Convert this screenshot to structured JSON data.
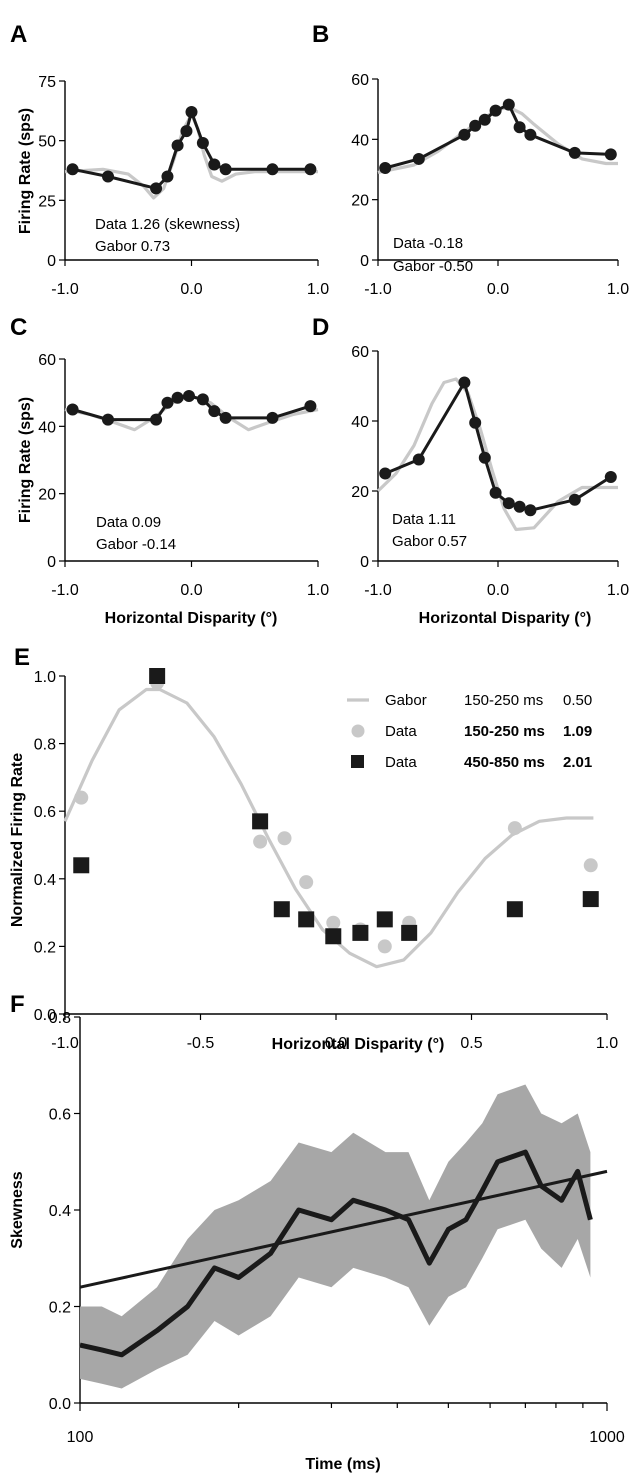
{
  "colors": {
    "data": "#1a1a1a",
    "gabor": "#c8c8c8",
    "band": "#a7a7a7",
    "axis": "#000000"
  },
  "chart_data": [
    {
      "panel": "A",
      "type": "line",
      "ylabel": "Firing Rate (sps)",
      "xlabel": "",
      "xlim": [
        -1.0,
        1.0
      ],
      "ylim": [
        0,
        75
      ],
      "xticks": [
        "-1.0",
        "0.0",
        "1.0"
      ],
      "yticks": [
        "0",
        "25",
        "50",
        "75"
      ],
      "annotations": [
        "Data    1.26 (skewness)",
        "Gabor  0.73"
      ],
      "series": [
        {
          "role": "data",
          "x": [
            -0.94,
            -0.66,
            -0.28,
            -0.19,
            -0.11,
            -0.04,
            0.0,
            0.09,
            0.18,
            0.27,
            0.64,
            0.94
          ],
          "y": [
            38,
            35,
            30,
            35,
            48,
            54,
            62,
            49,
            40,
            38,
            38,
            38
          ]
        },
        {
          "role": "gabor",
          "x": [
            -1.0,
            -0.7,
            -0.5,
            -0.38,
            -0.3,
            -0.22,
            -0.14,
            -0.07,
            0.0,
            0.05,
            0.1,
            0.16,
            0.24,
            0.35,
            0.5,
            1.0
          ],
          "y": [
            37,
            38,
            36,
            31,
            26,
            30,
            42,
            54,
            61,
            55,
            44,
            35,
            33,
            36,
            37,
            37
          ]
        }
      ]
    },
    {
      "panel": "B",
      "type": "line",
      "ylabel": "",
      "xlabel": "",
      "xlim": [
        -1.0,
        1.0
      ],
      "ylim": [
        0,
        60
      ],
      "xticks": [
        "-1.0",
        "0.0",
        "1.0"
      ],
      "yticks": [
        "0",
        "20",
        "40",
        "60"
      ],
      "annotations": [
        "Data   -0.18",
        "Gabor -0.50"
      ],
      "series": [
        {
          "role": "data",
          "x": [
            -0.94,
            -0.66,
            -0.28,
            -0.19,
            -0.11,
            -0.02,
            0.09,
            0.18,
            0.27,
            0.64,
            0.94
          ],
          "y": [
            30.5,
            33.5,
            41.5,
            44.5,
            46.5,
            49.5,
            51.5,
            44,
            41.5,
            35.5,
            35
          ]
        },
        {
          "role": "gabor",
          "x": [
            -1.0,
            -0.7,
            -0.5,
            -0.3,
            -0.1,
            0.0,
            0.1,
            0.2,
            0.3,
            0.5,
            0.7,
            0.9,
            1.0
          ],
          "y": [
            29,
            31.5,
            36,
            42,
            47.5,
            50,
            50.5,
            48.5,
            45,
            38.5,
            33.5,
            32,
            32
          ]
        }
      ]
    },
    {
      "panel": "C",
      "type": "line",
      "ylabel": "Firing Rate (sps)",
      "xlabel": "Horizontal Disparity (°)",
      "xlim": [
        -1.0,
        1.0
      ],
      "ylim": [
        0,
        60
      ],
      "xticks": [
        "-1.0",
        "0.0",
        "1.0"
      ],
      "yticks": [
        "0",
        "20",
        "40",
        "60"
      ],
      "annotations": [
        "Data    0.09",
        "Gabor -0.14"
      ],
      "series": [
        {
          "role": "data",
          "x": [
            -0.94,
            -0.66,
            -0.28,
            -0.19,
            -0.11,
            -0.02,
            0.09,
            0.18,
            0.27,
            0.64,
            0.94
          ],
          "y": [
            45,
            42,
            42,
            47,
            48.5,
            49,
            48,
            44.5,
            42.5,
            42.5,
            46
          ]
        },
        {
          "role": "gabor",
          "x": [
            -1.0,
            -0.8,
            -0.6,
            -0.45,
            -0.3,
            -0.15,
            0.0,
            0.15,
            0.3,
            0.45,
            0.6,
            0.8,
            1.0
          ],
          "y": [
            45,
            43.5,
            41,
            39,
            42.5,
            47,
            49,
            47,
            42.5,
            39,
            41,
            43.5,
            45
          ]
        }
      ]
    },
    {
      "panel": "D",
      "type": "line",
      "ylabel": "",
      "xlabel": "Horizontal Disparity (°)",
      "xlim": [
        -1.0,
        1.0
      ],
      "ylim": [
        0,
        60
      ],
      "xticks": [
        "-1.0",
        "0.0",
        "1.0"
      ],
      "yticks": [
        "0",
        "20",
        "40",
        "60"
      ],
      "annotations": [
        "Data    1.11",
        "Gabor  0.57"
      ],
      "series": [
        {
          "role": "data",
          "x": [
            -0.94,
            -0.66,
            -0.28,
            -0.19,
            -0.11,
            -0.02,
            0.09,
            0.18,
            0.27,
            0.64,
            0.94
          ],
          "y": [
            25,
            29,
            51,
            39.5,
            29.5,
            19.5,
            16.5,
            15.5,
            14.5,
            17.5,
            24
          ]
        },
        {
          "role": "gabor",
          "x": [
            -1.0,
            -0.85,
            -0.7,
            -0.55,
            -0.45,
            -0.35,
            -0.25,
            -0.15,
            -0.05,
            0.05,
            0.15,
            0.3,
            0.5,
            0.7,
            1.0
          ],
          "y": [
            20,
            25,
            33,
            45,
            51,
            52,
            48,
            38,
            26,
            15,
            9,
            9.5,
            17,
            21,
            21
          ]
        }
      ]
    },
    {
      "panel": "E",
      "type": "scatter",
      "ylabel": "Normalized Firing Rate",
      "xlabel": "",
      "xlim": [
        -1.0,
        1.0
      ],
      "ylim": [
        0.0,
        1.0
      ],
      "xticks": [
        "-1.0",
        "-0.5",
        "0.0",
        "0.5",
        "1.0"
      ],
      "yticks": [
        "0.0",
        "0.2",
        "0.4",
        "0.6",
        "0.8",
        "1.0"
      ],
      "legend_position": "top-right",
      "legend": [
        {
          "marker": "line",
          "label": "Gabor",
          "window": "150-250 ms",
          "value": "0.50"
        },
        {
          "marker": "circle",
          "label": "Data",
          "window": "150-250 ms",
          "value": "1.09"
        },
        {
          "marker": "square",
          "label": "Data",
          "window": "450-850 ms",
          "value": "2.01"
        }
      ],
      "series": [
        {
          "role": "gabor",
          "x": [
            -1.0,
            -0.9,
            -0.8,
            -0.7,
            -0.65,
            -0.55,
            -0.45,
            -0.35,
            -0.25,
            -0.15,
            -0.05,
            0.05,
            0.15,
            0.25,
            0.35,
            0.45,
            0.55,
            0.65,
            0.75,
            0.85,
            0.95
          ],
          "y": [
            0.57,
            0.75,
            0.9,
            0.96,
            0.96,
            0.92,
            0.82,
            0.68,
            0.52,
            0.37,
            0.25,
            0.18,
            0.14,
            0.16,
            0.24,
            0.36,
            0.46,
            0.53,
            0.57,
            0.58,
            0.58
          ]
        },
        {
          "role": "circles",
          "x": [
            -0.94,
            -0.66,
            -0.28,
            -0.19,
            -0.11,
            -0.01,
            0.09,
            0.18,
            0.27,
            0.66,
            0.94
          ],
          "y": [
            0.64,
            0.98,
            0.51,
            0.52,
            0.39,
            0.27,
            0.25,
            0.2,
            0.27,
            0.55,
            0.44
          ]
        },
        {
          "role": "squares",
          "x": [
            -0.94,
            -0.66,
            -0.28,
            -0.2,
            -0.11,
            -0.01,
            0.09,
            0.18,
            0.27,
            0.66,
            0.94
          ],
          "y": [
            0.44,
            1.0,
            0.57,
            0.31,
            0.28,
            0.23,
            0.24,
            0.28,
            0.24,
            0.31,
            0.34
          ]
        }
      ]
    },
    {
      "panel": "F",
      "type": "line",
      "title": "Horizontal Disparity (°)",
      "ylabel": "Skewness",
      "xlabel": "Time (ms)",
      "xscale": "log",
      "xlim": [
        100,
        1000
      ],
      "ylim": [
        0.0,
        0.8
      ],
      "xticks": [
        "100",
        "1000"
      ],
      "yticks": [
        "0.0",
        "0.2",
        "0.4",
        "0.6",
        "0.8"
      ],
      "series": [
        {
          "role": "trend",
          "x": [
            100,
            1000
          ],
          "y": [
            0.24,
            0.48
          ]
        },
        {
          "role": "mean",
          "x": [
            100,
            110,
            120,
            140,
            160,
            180,
            200,
            230,
            260,
            300,
            330,
            380,
            420,
            460,
            500,
            540,
            580,
            620,
            700,
            750,
            820,
            880,
            930
          ],
          "y": [
            0.12,
            0.11,
            0.1,
            0.15,
            0.2,
            0.28,
            0.26,
            0.31,
            0.4,
            0.38,
            0.42,
            0.4,
            0.38,
            0.29,
            0.36,
            0.38,
            0.44,
            0.5,
            0.52,
            0.45,
            0.42,
            0.48,
            0.38
          ]
        },
        {
          "role": "band_upper",
          "x": [
            100,
            110,
            120,
            140,
            160,
            180,
            200,
            230,
            260,
            300,
            330,
            380,
            420,
            460,
            500,
            540,
            580,
            620,
            700,
            750,
            820,
            880,
            930
          ],
          "y": [
            0.2,
            0.2,
            0.18,
            0.24,
            0.34,
            0.4,
            0.42,
            0.46,
            0.54,
            0.52,
            0.56,
            0.52,
            0.52,
            0.42,
            0.5,
            0.54,
            0.58,
            0.64,
            0.66,
            0.6,
            0.58,
            0.6,
            0.52
          ]
        },
        {
          "role": "band_lower",
          "x": [
            100,
            110,
            120,
            140,
            160,
            180,
            200,
            230,
            260,
            300,
            330,
            380,
            420,
            460,
            500,
            540,
            580,
            620,
            700,
            750,
            820,
            880,
            930
          ],
          "y": [
            0.05,
            0.04,
            0.03,
            0.07,
            0.1,
            0.17,
            0.14,
            0.18,
            0.26,
            0.24,
            0.28,
            0.26,
            0.24,
            0.16,
            0.22,
            0.24,
            0.3,
            0.36,
            0.38,
            0.32,
            0.28,
            0.34,
            0.26
          ]
        }
      ]
    }
  ]
}
